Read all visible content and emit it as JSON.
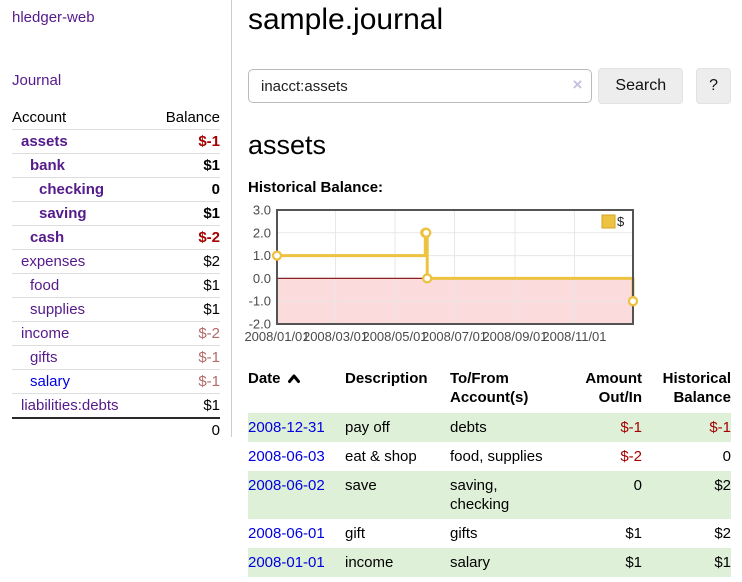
{
  "colors": {
    "purple_link": "#551a8b",
    "blue_link": "#0000e0",
    "negative": "#a40000",
    "negative_muted": "#b36a6a",
    "row_green": "#dff0d8",
    "chart_line": "#edc240"
  },
  "app": {
    "brand": "hledger-web",
    "nav": {
      "journal": "Journal"
    }
  },
  "sidebar": {
    "accounts_table": {
      "col_account": "Account",
      "col_balance": "Balance",
      "rows": [
        {
          "name": "assets",
          "balance": "$-1"
        },
        {
          "name": "bank",
          "balance": "$1"
        },
        {
          "name": "checking",
          "balance": "0"
        },
        {
          "name": "saving",
          "balance": "$1"
        },
        {
          "name": "cash",
          "balance": "$-2"
        },
        {
          "name": "expenses",
          "balance": "$2"
        },
        {
          "name": "food",
          "balance": "$1"
        },
        {
          "name": "supplies",
          "balance": "$1"
        },
        {
          "name": "income",
          "balance": "$-2"
        },
        {
          "name": "gifts",
          "balance": "$-1"
        },
        {
          "name": "salary",
          "balance": "$-1"
        },
        {
          "name": "liabilities:debts",
          "balance": "$1"
        }
      ],
      "total": "0"
    }
  },
  "main": {
    "title": "sample.journal",
    "search": {
      "value": "inacct:assets",
      "clear_icon": "×",
      "search_button": "Search",
      "help_button": "?"
    },
    "account_heading": "assets",
    "chart_title": "Historical Balance:"
  },
  "chart_data": {
    "type": "line",
    "step": true,
    "title": "Historical Balance:",
    "legend": "$",
    "legend_position": "top-right",
    "grid": true,
    "ylim": [
      -2.0,
      3.0
    ],
    "y_ticks": [
      3.0,
      2.0,
      1.0,
      0.0,
      -1.0,
      -2.0
    ],
    "x_range_days": [
      0,
      365
    ],
    "x_ticks": [
      {
        "day": 0,
        "label": "2008/01/01"
      },
      {
        "day": 60,
        "label": "2008/03/01"
      },
      {
        "day": 121,
        "label": "2008/05/01"
      },
      {
        "day": 182,
        "label": "2008/07/01"
      },
      {
        "day": 244,
        "label": "2008/09/01"
      },
      {
        "day": 305,
        "label": "2008/11/01"
      }
    ],
    "series": [
      {
        "name": "$",
        "color": "#edc240",
        "points": [
          {
            "date": "2008-01-01",
            "day": 0,
            "value": 1.0
          },
          {
            "date": "2008-06-01",
            "day": 152,
            "value": 2.0
          },
          {
            "date": "2008-06-02",
            "day": 153,
            "value": 2.0
          },
          {
            "date": "2008-06-03",
            "day": 154,
            "value": 0.0
          },
          {
            "date": "2008-12-31",
            "day": 365,
            "value": -1.0
          }
        ]
      }
    ],
    "negative_region_fill": "#fbdbdb",
    "zero_line_color": "#8b2222"
  },
  "register": {
    "headers": {
      "date": "Date",
      "description": "Description",
      "tofrom_line1": "To/From",
      "tofrom_line2": "Account(s)",
      "amount_line1": "Amount",
      "amount_line2": "Out/In",
      "historical_line1": "Historical",
      "historical_line2": "Balance"
    },
    "rows": [
      {
        "date": "2008-12-31",
        "description": "pay off",
        "accounts": "debts",
        "amount": "$-1",
        "balance": "$-1"
      },
      {
        "date": "2008-06-03",
        "description": "eat & shop",
        "accounts": "food, supplies",
        "amount": "$-2",
        "balance": "0"
      },
      {
        "date": "2008-06-02",
        "description": "save",
        "accounts": "saving, checking",
        "amount": "0",
        "balance": "$2"
      },
      {
        "date": "2008-06-01",
        "description": "gift",
        "accounts": "gifts",
        "amount": "$1",
        "balance": "$2"
      },
      {
        "date": "2008-01-01",
        "description": "income",
        "accounts": "salary",
        "amount": "$1",
        "balance": "$1"
      }
    ]
  }
}
